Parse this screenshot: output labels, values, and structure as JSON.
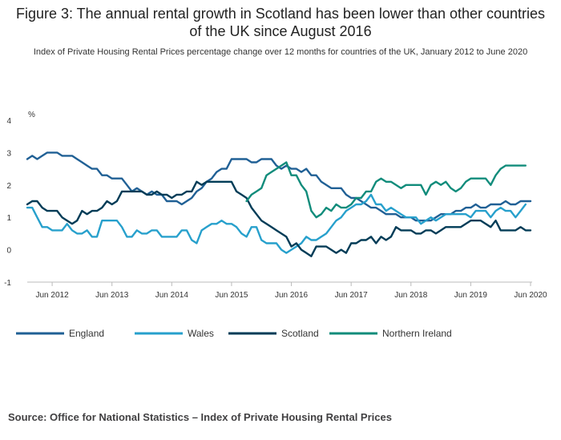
{
  "chart_data": {
    "type": "line",
    "title": "Figure 3: The annual rental growth in Scotland has been lower than other countries of the UK since August 2016",
    "subtitle": "Index of Private Housing Rental Prices percentage change over 12 months for countries of the UK, January 2012 to June 2020",
    "ylabel": "%",
    "ylim": [
      -1,
      4
    ],
    "yticks": [
      -1,
      0,
      1,
      2,
      3,
      4
    ],
    "x_range": [
      "2012-01",
      "2020-06"
    ],
    "xtick_labels": [
      "Jun 2012",
      "Jun 2013",
      "Jun 2014",
      "Jun 2015",
      "Jun 2016",
      "Jun 2017",
      "Jun 2018",
      "Jun 2019",
      "Jun 2020"
    ],
    "xtick_months": [
      "2012-06",
      "2013-06",
      "2014-06",
      "2015-06",
      "2016-06",
      "2017-06",
      "2018-06",
      "2019-06",
      "2020-06"
    ],
    "grid": false,
    "legend_position": "bottom",
    "series": [
      {
        "name": "England",
        "color": "#206095",
        "start": "2012-01",
        "values": [
          2.8,
          2.9,
          2.8,
          2.9,
          3.0,
          3.0,
          3.0,
          2.9,
          2.9,
          2.9,
          2.8,
          2.7,
          2.6,
          2.5,
          2.5,
          2.3,
          2.3,
          2.2,
          2.2,
          2.2,
          2.0,
          1.8,
          1.9,
          1.8,
          1.7,
          1.8,
          1.7,
          1.7,
          1.5,
          1.5,
          1.5,
          1.4,
          1.5,
          1.6,
          1.8,
          1.9,
          2.1,
          2.2,
          2.4,
          2.5,
          2.5,
          2.8,
          2.8,
          2.8,
          2.8,
          2.7,
          2.7,
          2.8,
          2.8,
          2.8,
          2.6,
          2.5,
          2.6,
          2.5,
          2.5,
          2.4,
          2.5,
          2.3,
          2.3,
          2.1,
          2.0,
          1.9,
          1.9,
          1.9,
          1.7,
          1.6,
          1.6,
          1.5,
          1.4,
          1.3,
          1.3,
          1.2,
          1.1,
          1.1,
          1.1,
          1.0,
          1.0,
          1.0,
          0.9,
          0.9,
          0.9,
          0.9,
          1.0,
          1.1,
          1.1,
          1.1,
          1.2,
          1.2,
          1.3,
          1.3,
          1.4,
          1.3,
          1.3,
          1.4,
          1.4,
          1.4,
          1.5,
          1.4,
          1.4,
          1.5,
          1.5,
          1.5
        ]
      },
      {
        "name": "Wales",
        "color": "#27a0cc",
        "start": "2012-01",
        "values": [
          1.3,
          1.3,
          1.0,
          0.7,
          0.7,
          0.6,
          0.6,
          0.6,
          0.8,
          0.6,
          0.5,
          0.5,
          0.6,
          0.4,
          0.4,
          0.9,
          0.9,
          0.9,
          0.9,
          0.7,
          0.4,
          0.4,
          0.6,
          0.5,
          0.5,
          0.6,
          0.6,
          0.4,
          0.4,
          0.4,
          0.4,
          0.6,
          0.6,
          0.3,
          0.2,
          0.6,
          0.7,
          0.8,
          0.8,
          0.9,
          0.8,
          0.8,
          0.7,
          0.5,
          0.4,
          0.7,
          0.7,
          0.3,
          0.2,
          0.2,
          0.2,
          0.0,
          -0.1,
          0.0,
          0.1,
          0.2,
          0.4,
          0.3,
          0.3,
          0.4,
          0.5,
          0.7,
          0.9,
          1.0,
          1.2,
          1.3,
          1.4,
          1.4,
          1.5,
          1.7,
          1.4,
          1.4,
          1.2,
          1.3,
          1.2,
          1.1,
          1.0,
          1.0,
          1.0,
          0.8,
          0.9,
          1.0,
          0.9,
          1.0,
          1.1,
          1.1,
          1.1,
          1.1,
          1.1,
          1.0,
          1.2,
          1.2,
          1.2,
          1.0,
          1.2,
          1.3,
          1.2,
          1.2,
          1.0,
          1.2,
          1.4
        ]
      },
      {
        "name": "Scotland",
        "color": "#003c57",
        "start": "2012-01",
        "values": [
          1.4,
          1.5,
          1.5,
          1.3,
          1.2,
          1.2,
          1.2,
          1.0,
          0.9,
          0.8,
          0.9,
          1.2,
          1.1,
          1.2,
          1.2,
          1.3,
          1.5,
          1.4,
          1.5,
          1.8,
          1.8,
          1.8,
          1.8,
          1.8,
          1.7,
          1.7,
          1.8,
          1.7,
          1.7,
          1.6,
          1.7,
          1.7,
          1.8,
          1.8,
          2.1,
          2.0,
          2.1,
          2.1,
          2.1,
          2.1,
          2.1,
          2.1,
          1.8,
          1.7,
          1.6,
          1.3,
          1.1,
          0.9,
          0.8,
          0.7,
          0.6,
          0.5,
          0.4,
          0.1,
          0.2,
          0.0,
          -0.1,
          -0.2,
          0.1,
          0.1,
          0.1,
          0.0,
          -0.1,
          0.0,
          -0.1,
          0.2,
          0.2,
          0.3,
          0.3,
          0.4,
          0.2,
          0.4,
          0.3,
          0.4,
          0.7,
          0.6,
          0.6,
          0.6,
          0.5,
          0.5,
          0.6,
          0.6,
          0.5,
          0.6,
          0.7,
          0.7,
          0.7,
          0.7,
          0.8,
          0.9,
          0.9,
          0.9,
          0.8,
          0.7,
          0.9,
          0.6,
          0.6,
          0.6,
          0.6,
          0.7,
          0.6,
          0.6
        ]
      },
      {
        "name": "Northern Ireland",
        "color": "#118c7b",
        "start": "2015-09",
        "values": [
          1.5,
          1.7,
          1.8,
          1.9,
          2.3,
          2.4,
          2.5,
          2.6,
          2.7,
          2.3,
          2.3,
          2.0,
          1.8,
          1.2,
          1.0,
          1.1,
          1.3,
          1.2,
          1.4,
          1.3,
          1.3,
          1.4,
          1.6,
          1.6,
          1.8,
          1.8,
          2.1,
          2.2,
          2.1,
          2.1,
          2.0,
          1.9,
          2.0,
          2.0,
          2.0,
          2.0,
          1.7,
          2.0,
          2.1,
          2.0,
          2.1,
          1.9,
          1.8,
          1.9,
          2.1,
          2.2,
          2.2,
          2.2,
          2.2,
          2.0,
          2.3,
          2.5,
          2.6,
          2.6,
          2.6,
          2.6,
          2.6
        ]
      }
    ]
  },
  "source": "Source: Office for National Statistics – Index of Private Housing Rental Prices"
}
